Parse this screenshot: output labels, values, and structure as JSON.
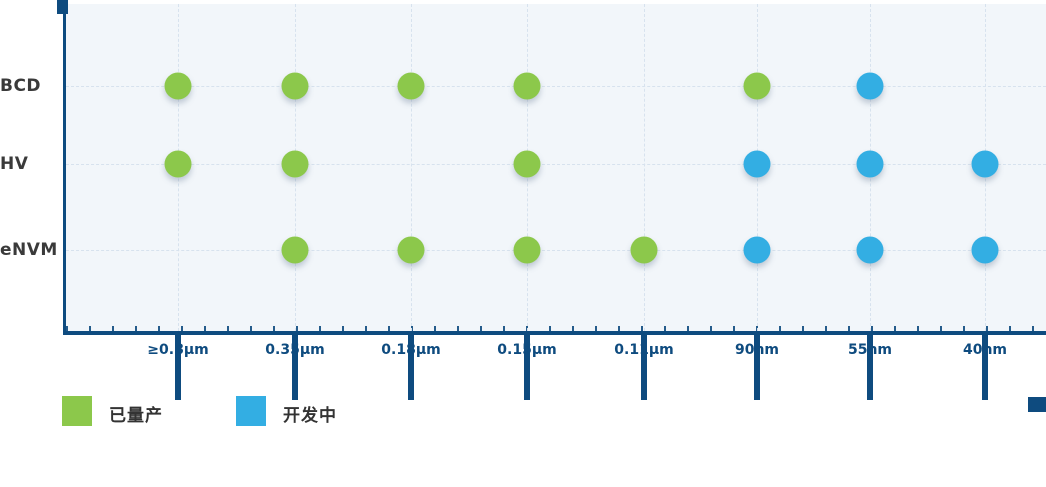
{
  "colors": {
    "axis_navy": "#0e4b7f",
    "plot_bg": "#f2f6fa",
    "gridline": "#d7e2ee",
    "prod_green": "#8cc84b",
    "dev_blue": "#33aee3",
    "row_label_color": "#3a3a3a",
    "legend_text_color": "#333333"
  },
  "chart_data": {
    "type": "scatter",
    "title": "",
    "x_categories": [
      "≥0.8μm",
      "0.35μm",
      "0.18μm",
      "0.15μm",
      "0.11μm",
      "90nm",
      "55nm",
      "40nm"
    ],
    "y_categories": [
      "BCD",
      "HV",
      "eNVM"
    ],
    "matrix": {
      "BCD": [
        "prod",
        "prod",
        "prod",
        "prod",
        null,
        "prod",
        "dev",
        null
      ],
      "HV": [
        "prod",
        "prod",
        null,
        "prod",
        null,
        "dev",
        "dev",
        "dev"
      ],
      "eNVM": [
        null,
        "prod",
        "prod",
        "prod",
        "prod",
        "dev",
        "dev",
        "dev"
      ]
    },
    "legend": [
      {
        "key": "prod",
        "label": "已量产",
        "color": "#8cc84b"
      },
      {
        "key": "dev",
        "label": "开发中",
        "color": "#33aee3"
      }
    ],
    "grid": "dashed",
    "legend_position": "bottom-left"
  }
}
